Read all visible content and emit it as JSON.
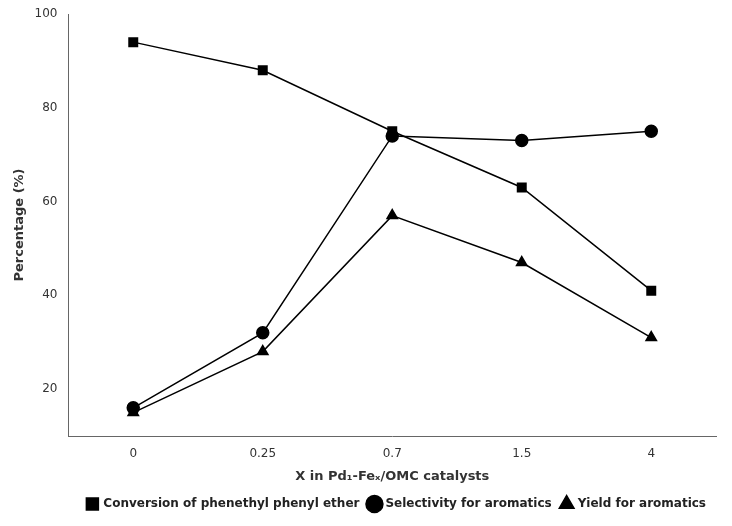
{
  "chart_data": {
    "type": "line",
    "categories": [
      "0",
      "0.25",
      "0.7",
      "1.5",
      "4"
    ],
    "series": [
      {
        "name": "Conversion of phenethyl phenyl ether",
        "color": "#000000",
        "marker": "square",
        "values": [
          94,
          88,
          75,
          63,
          41
        ]
      },
      {
        "name": "Selectivity for aromatics",
        "color": "#000000",
        "marker": "circle",
        "values": [
          16,
          32,
          74,
          73,
          75
        ]
      },
      {
        "name": "Yield for aromatics",
        "color": "#000000",
        "marker": "triangle",
        "values": [
          15,
          28,
          57,
          47,
          31
        ]
      }
    ],
    "x_label": "X in Pd₁-Feₓ/OMC catalysts",
    "y_label": "Percentage (%)",
    "ylim": [
      10,
      100
    ],
    "yticks": [
      20,
      40,
      60,
      80,
      100
    ],
    "grid": false,
    "legend": "lower right"
  }
}
